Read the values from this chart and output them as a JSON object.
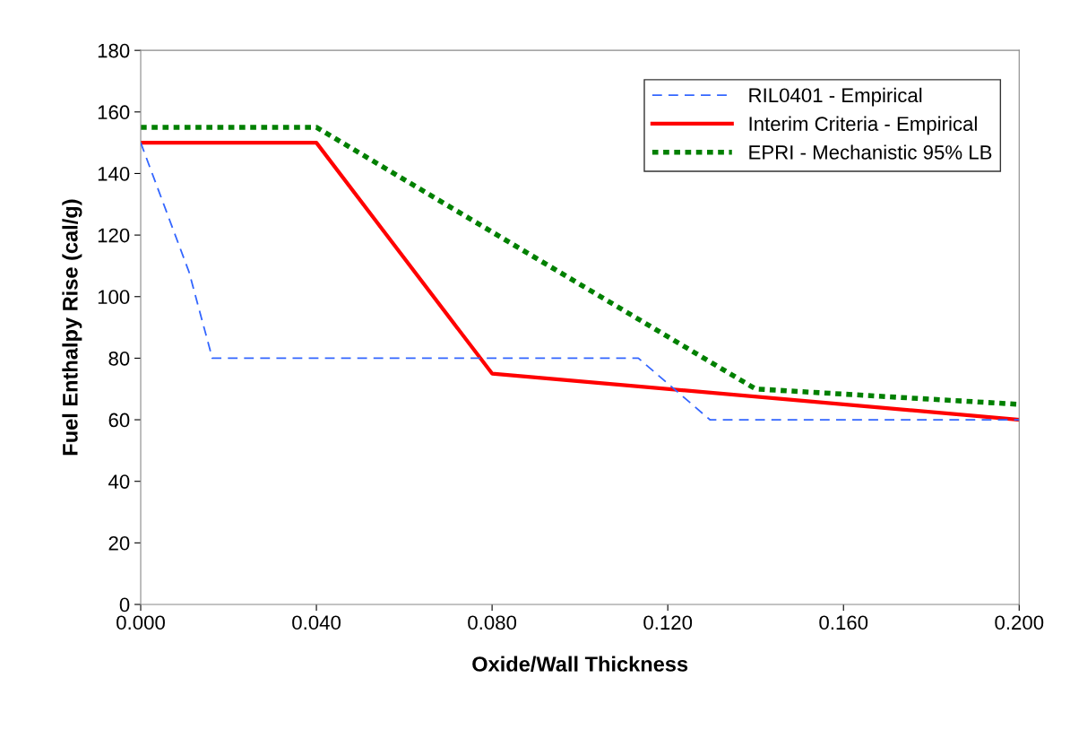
{
  "chart_data": {
    "type": "line",
    "xlabel": "Oxide/Wall Thickness",
    "ylabel": "Fuel Enthalpy Rise (cal/g)",
    "xlim": [
      0,
      0.2
    ],
    "ylim": [
      0,
      180
    ],
    "xticks": [
      {
        "value": 0,
        "label": "0.000"
      },
      {
        "value": 0.04,
        "label": "0.040"
      },
      {
        "value": 0.08,
        "label": "0.080"
      },
      {
        "value": 0.12,
        "label": "0.120"
      },
      {
        "value": 0.16,
        "label": "0.160"
      },
      {
        "value": 0.2,
        "label": "0.200"
      }
    ],
    "yticks": [
      0,
      20,
      40,
      60,
      80,
      100,
      120,
      140,
      160,
      180
    ],
    "grid": false,
    "legend": "top right",
    "marker": "none",
    "series": [
      {
        "name": "RIL0401 - Empirical",
        "color": "#3366ff",
        "line_style": "dashed",
        "x": [
          0,
          0.011,
          0.0163,
          0.1133,
          0.1296,
          0.2
        ],
        "values": [
          150,
          108,
          80,
          80,
          60,
          60
        ]
      },
      {
        "name": "Interim Criteria - Empirical",
        "color": "#ff0000",
        "line_style": "solid",
        "x": [
          0,
          0.04,
          0.08,
          0.2
        ],
        "values": [
          150,
          150,
          75,
          60
        ]
      },
      {
        "name": "EPRI - Mechanistic 95% LB",
        "color": "#008000",
        "line_style": "dotted",
        "x": [
          0,
          0.04,
          0.14,
          0.2
        ],
        "values": [
          155,
          155,
          70,
          65
        ]
      }
    ]
  }
}
